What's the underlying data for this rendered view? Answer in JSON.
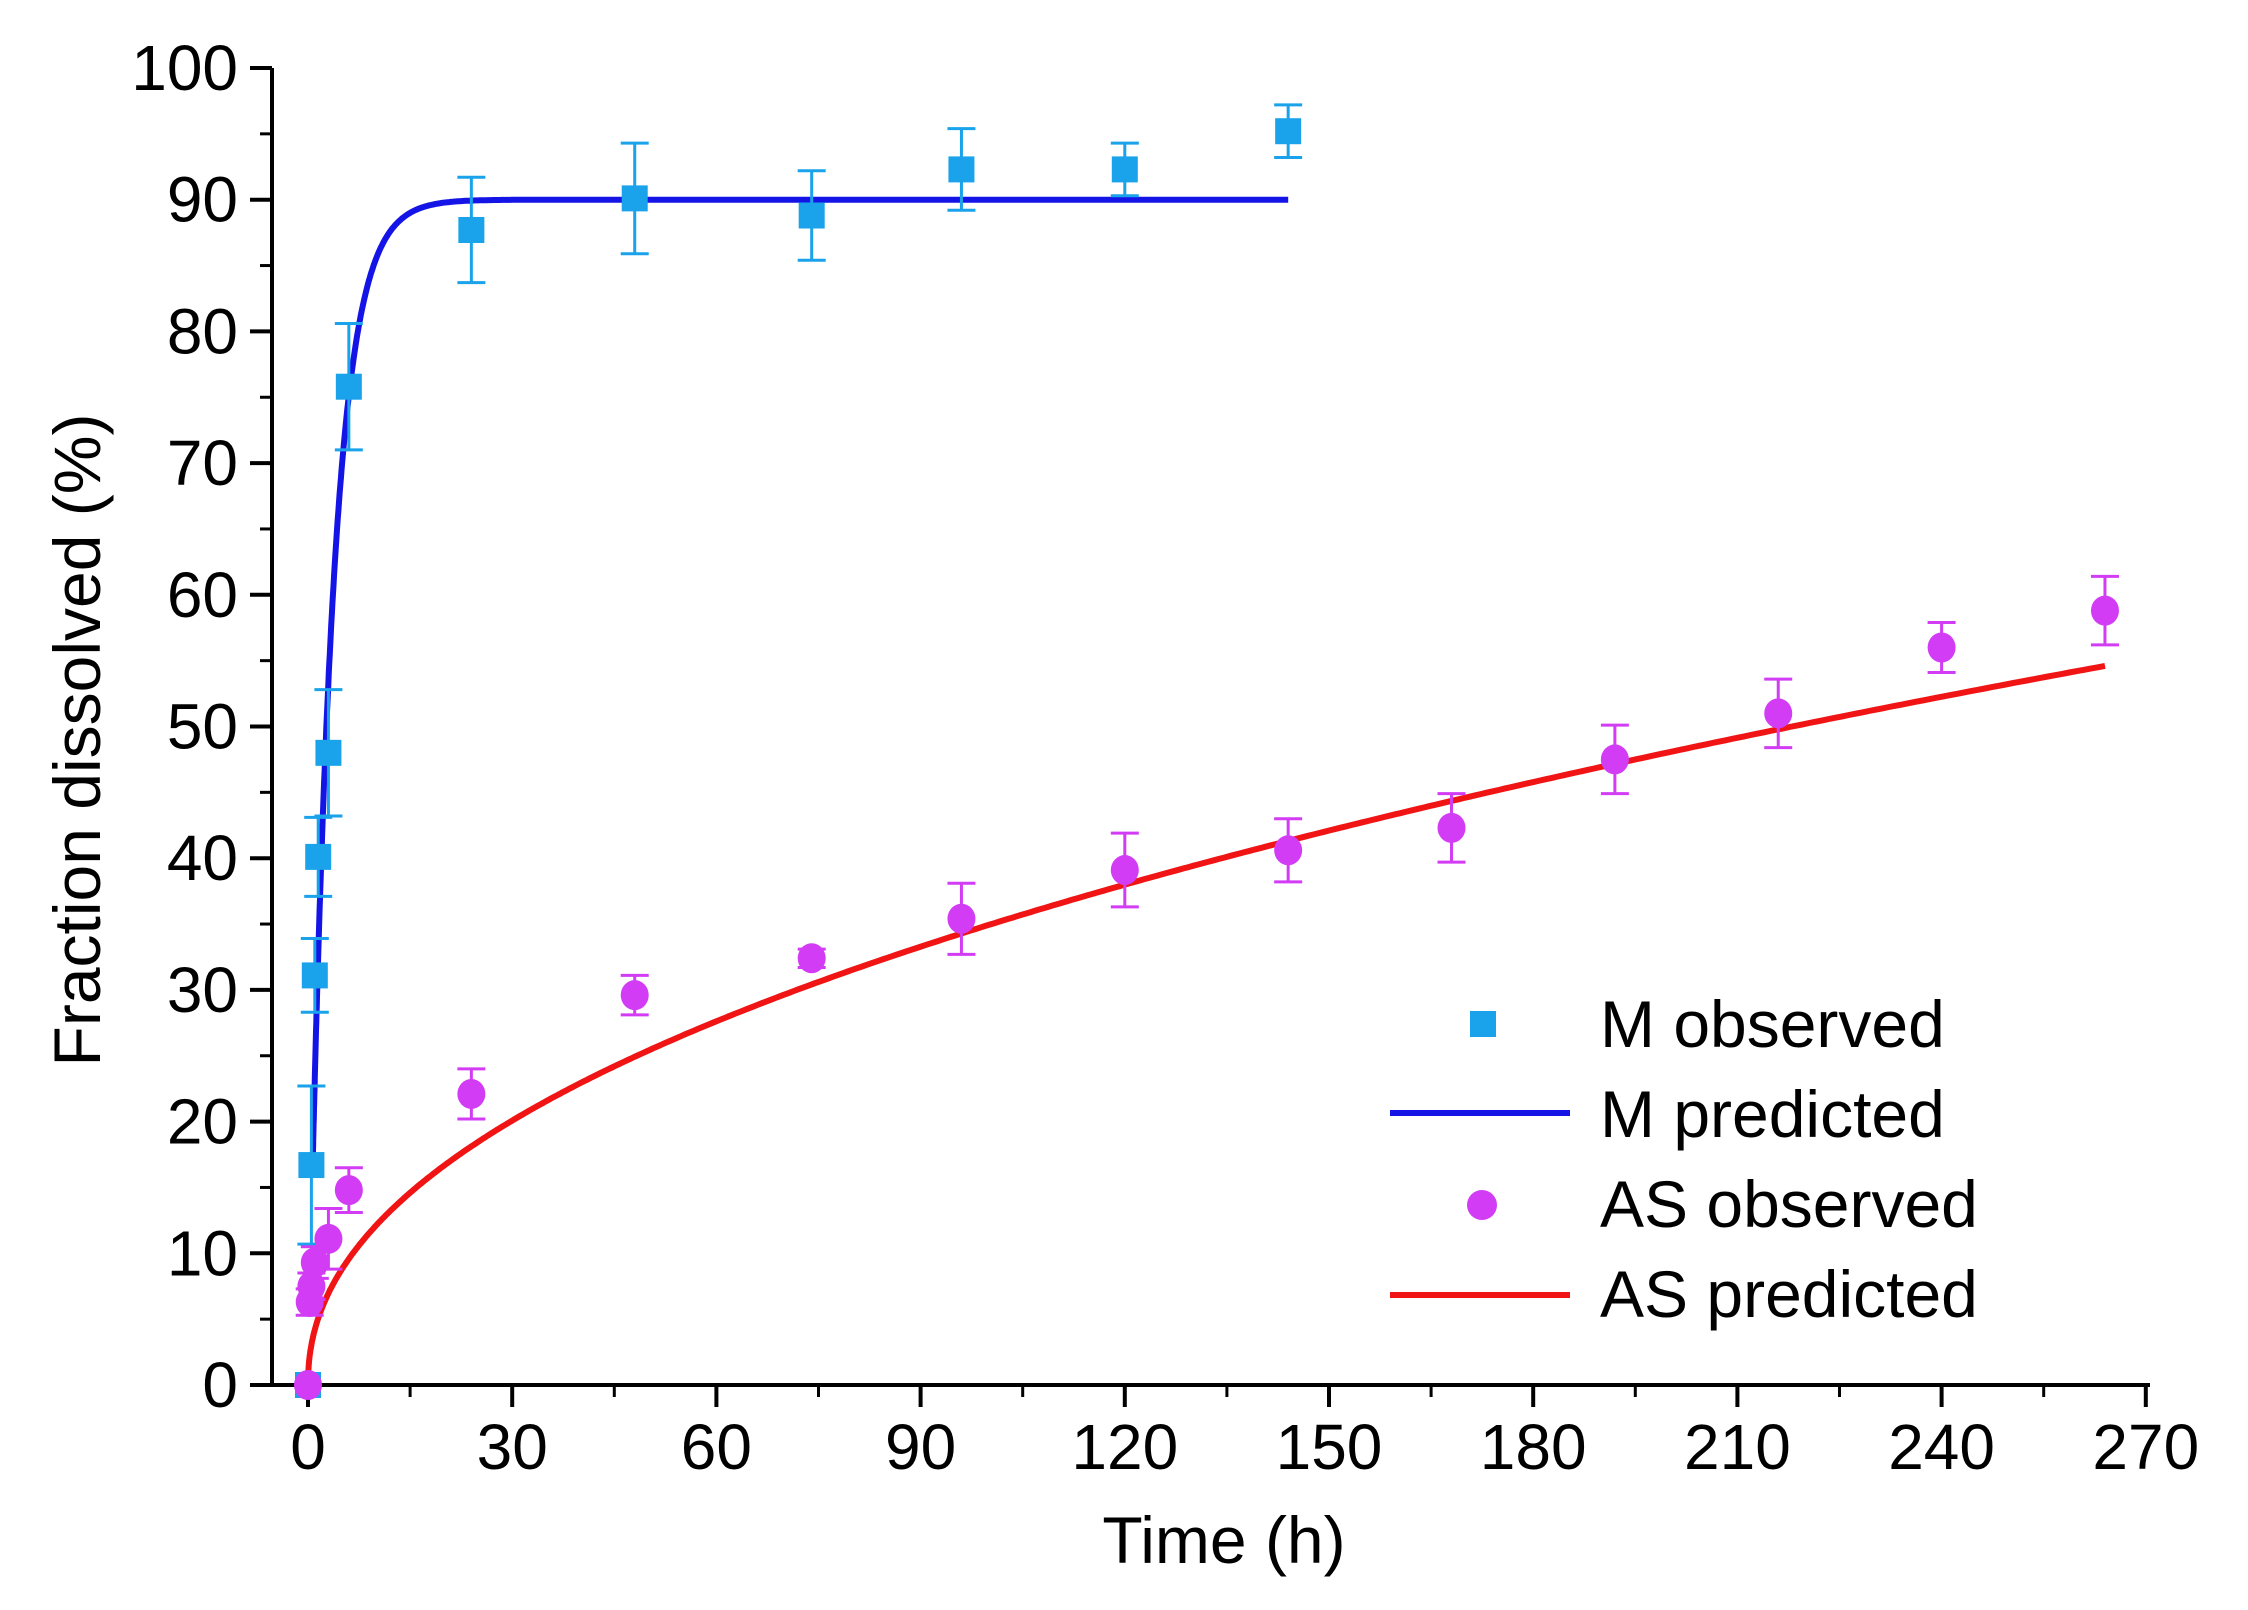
{
  "chart_data": {
    "type": "scatter",
    "xlabel": "Time (h)",
    "ylabel": "Fraction dissolved (%)",
    "xlim": [
      -3,
      270
    ],
    "ylim": [
      0,
      100
    ],
    "x_ticks": [
      0,
      30,
      60,
      90,
      120,
      150,
      180,
      210,
      240,
      270
    ],
    "y_ticks": [
      0,
      10,
      20,
      30,
      40,
      50,
      60,
      70,
      80,
      90,
      100
    ],
    "legend_position": "bottom-right",
    "series": [
      {
        "name": "M observed",
        "kind": "scatter",
        "marker": "square",
        "color": "#1aa3ea",
        "points": [
          {
            "x": 0,
            "y": 0,
            "err": 0
          },
          {
            "x": 0.5,
            "y": 16.7,
            "err": 6
          },
          {
            "x": 1,
            "y": 31.1,
            "err": 2.8
          },
          {
            "x": 1.5,
            "y": 40.1,
            "err": 3
          },
          {
            "x": 3,
            "y": 48.0,
            "err": 4.8
          },
          {
            "x": 6,
            "y": 75.8,
            "err": 4.8
          },
          {
            "x": 24,
            "y": 87.7,
            "err": 4
          },
          {
            "x": 48,
            "y": 90.1,
            "err": 4.2
          },
          {
            "x": 74,
            "y": 88.8,
            "err": 3.4
          },
          {
            "x": 96,
            "y": 92.3,
            "err": 3.1
          },
          {
            "x": 120,
            "y": 92.3,
            "err": 2
          },
          {
            "x": 144,
            "y": 95.2,
            "err": 2
          }
        ]
      },
      {
        "name": "M predicted",
        "kind": "line",
        "color": "#1414e6",
        "model": "plateau",
        "plateau": 90,
        "rate": 0.3,
        "x_range": [
          0.7,
          144
        ]
      },
      {
        "name": "AS observed",
        "kind": "scatter",
        "marker": "circle",
        "color": "#d23cf5",
        "points": [
          {
            "x": 0,
            "y": 0,
            "err": 0
          },
          {
            "x": 0.25,
            "y": 6.3,
            "err": 1
          },
          {
            "x": 0.5,
            "y": 7.5,
            "err": 1
          },
          {
            "x": 1,
            "y": 9.3,
            "err": 1.2
          },
          {
            "x": 3,
            "y": 11.1,
            "err": 2.3
          },
          {
            "x": 6,
            "y": 14.8,
            "err": 1.7
          },
          {
            "x": 24,
            "y": 22.1,
            "err": 1.9
          },
          {
            "x": 48,
            "y": 29.6,
            "err": 1.5
          },
          {
            "x": 74,
            "y": 32.4,
            "err": 0.7
          },
          {
            "x": 96,
            "y": 35.4,
            "err": 2.7
          },
          {
            "x": 120,
            "y": 39.1,
            "err": 2.8
          },
          {
            "x": 144,
            "y": 40.6,
            "err": 2.4
          },
          {
            "x": 168,
            "y": 42.3,
            "err": 2.6
          },
          {
            "x": 192,
            "y": 47.5,
            "err": 2.6
          },
          {
            "x": 216,
            "y": 51.0,
            "err": 2.6
          },
          {
            "x": 240,
            "y": 56.0,
            "err": 1.9
          },
          {
            "x": 264,
            "y": 58.8,
            "err": 2.6
          }
        ]
      },
      {
        "name": "AS predicted",
        "kind": "line",
        "color": "#f01414",
        "model": "power",
        "coef": 4.2,
        "exponent": 0.46,
        "x_range": [
          0,
          264
        ]
      }
    ]
  }
}
